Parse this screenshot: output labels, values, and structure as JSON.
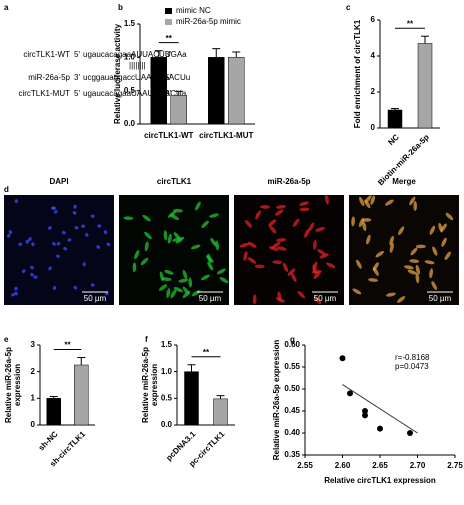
{
  "panel_labels": [
    "a",
    "b",
    "c",
    "d",
    "e",
    "f",
    "g"
  ],
  "sequence_diagram": {
    "rows": [
      {
        "name": "circTLK1-WT",
        "prefix": "5'",
        "seq": "ugaucacagaaAUUACUUGAa",
        "suffix": "3'"
      },
      {
        "name": "miR-26a-5p",
        "prefix": "3'",
        "seq": "ucggauaggaccUAAUGAACUu",
        "suffix": "5'"
      },
      {
        "name": "circTLK1-MUT",
        "prefix": "5'",
        "seq": "ugaucacagaaUAAUGAACUa",
        "suffix": "3'"
      }
    ],
    "pairing": "||||||||"
  },
  "images": {
    "labels": [
      "DAPI",
      "circTLK1",
      "miR-26a-5p",
      "Merge"
    ],
    "scale_bar": "50 µm"
  },
  "chart_data": [
    {
      "type": "bar",
      "ylabel": [
        "Relative luciferase activity"
      ],
      "categories": [
        "circTLK1-WT",
        "circTLK1-MUT"
      ],
      "series": [
        {
          "name": "mimic NC",
          "color": "#000000",
          "values": [
            1.0,
            1.0
          ],
          "errors": [
            0.1,
            0.13
          ]
        },
        {
          "name": "miR-26a-5p mimic",
          "color": "#a6a6a6",
          "values": [
            0.43,
            1.0
          ],
          "errors": [
            0.06,
            0.08
          ]
        }
      ],
      "ylim": [
        0,
        1.5
      ],
      "yticks": [
        {
          "value": 0,
          "label": "0.0"
        },
        0.5,
        {
          "value": 1,
          "label": "1.0"
        },
        1.5
      ],
      "annotation": "**"
    },
    {
      "type": "bar",
      "ylabel": [
        "Fold enrichment of circTLK1"
      ],
      "categories": [
        "NC",
        "Biotin-miR-26a-5p"
      ],
      "series": [
        {
          "colors": [
            "#000000",
            "#a6a6a6"
          ],
          "values": [
            1.0,
            4.7
          ],
          "errors": [
            0.08,
            0.4
          ]
        }
      ],
      "ylim": [
        0,
        6
      ],
      "yticks": [
        0,
        2,
        4,
        6
      ],
      "annotation": "**"
    },
    {
      "type": "bar",
      "ylabel": [
        "Relative miR-26a-5p",
        "expression"
      ],
      "categories": [
        "sh-NC",
        "sh-circTLK1"
      ],
      "series": [
        {
          "colors": [
            "#000000",
            "#a6a6a6"
          ],
          "values": [
            1.0,
            2.25
          ],
          "errors": [
            0.07,
            0.28
          ]
        }
      ],
      "ylim": [
        0,
        3
      ],
      "yticks": [
        0,
        1,
        2,
        3
      ],
      "annotation": "**"
    },
    {
      "type": "bar",
      "ylabel": [
        "Relative miR-26a-5p",
        "expression"
      ],
      "categories": [
        "pcDNA3.1",
        "pc-circTLK1"
      ],
      "series": [
        {
          "colors": [
            "#000000",
            "#a6a6a6"
          ],
          "values": [
            1.0,
            0.49
          ],
          "errors": [
            0.13,
            0.06
          ]
        }
      ],
      "ylim": [
        0,
        1.5
      ],
      "yticks": [
        {
          "value": 0,
          "label": "0.0"
        },
        0.5,
        {
          "value": 1,
          "label": "1.0"
        },
        1.5
      ],
      "annotation": "**"
    },
    {
      "type": "scatter",
      "xlabel": "Relative circTLK1 expression",
      "ylabel": [
        "Relative miR-26a-5p expression"
      ],
      "x": [
        2.6,
        2.61,
        2.63,
        2.63,
        2.65,
        2.69
      ],
      "values": [
        0.57,
        0.49,
        0.45,
        0.44,
        0.41,
        0.4
      ],
      "fit_line": {
        "x": [
          2.6,
          2.7
        ],
        "y": [
          0.51,
          0.4
        ]
      },
      "xlim": [
        2.55,
        2.75
      ],
      "xticks": [
        2.55,
        {
          "value": 2.6,
          "label": "2.60"
        },
        2.65,
        {
          "value": 2.7,
          "label": "2.70"
        },
        2.75
      ],
      "ylim": [
        0.35,
        0.6
      ],
      "yticks": [
        0.35,
        {
          "value": 0.4,
          "label": "0.40"
        },
        0.45,
        {
          "value": 0.5,
          "label": "0.50"
        },
        0.55,
        {
          "value": 0.6,
          "label": "0.60"
        }
      ],
      "annotations": [
        "r=-0.8168",
        "p=0.0473"
      ]
    }
  ]
}
